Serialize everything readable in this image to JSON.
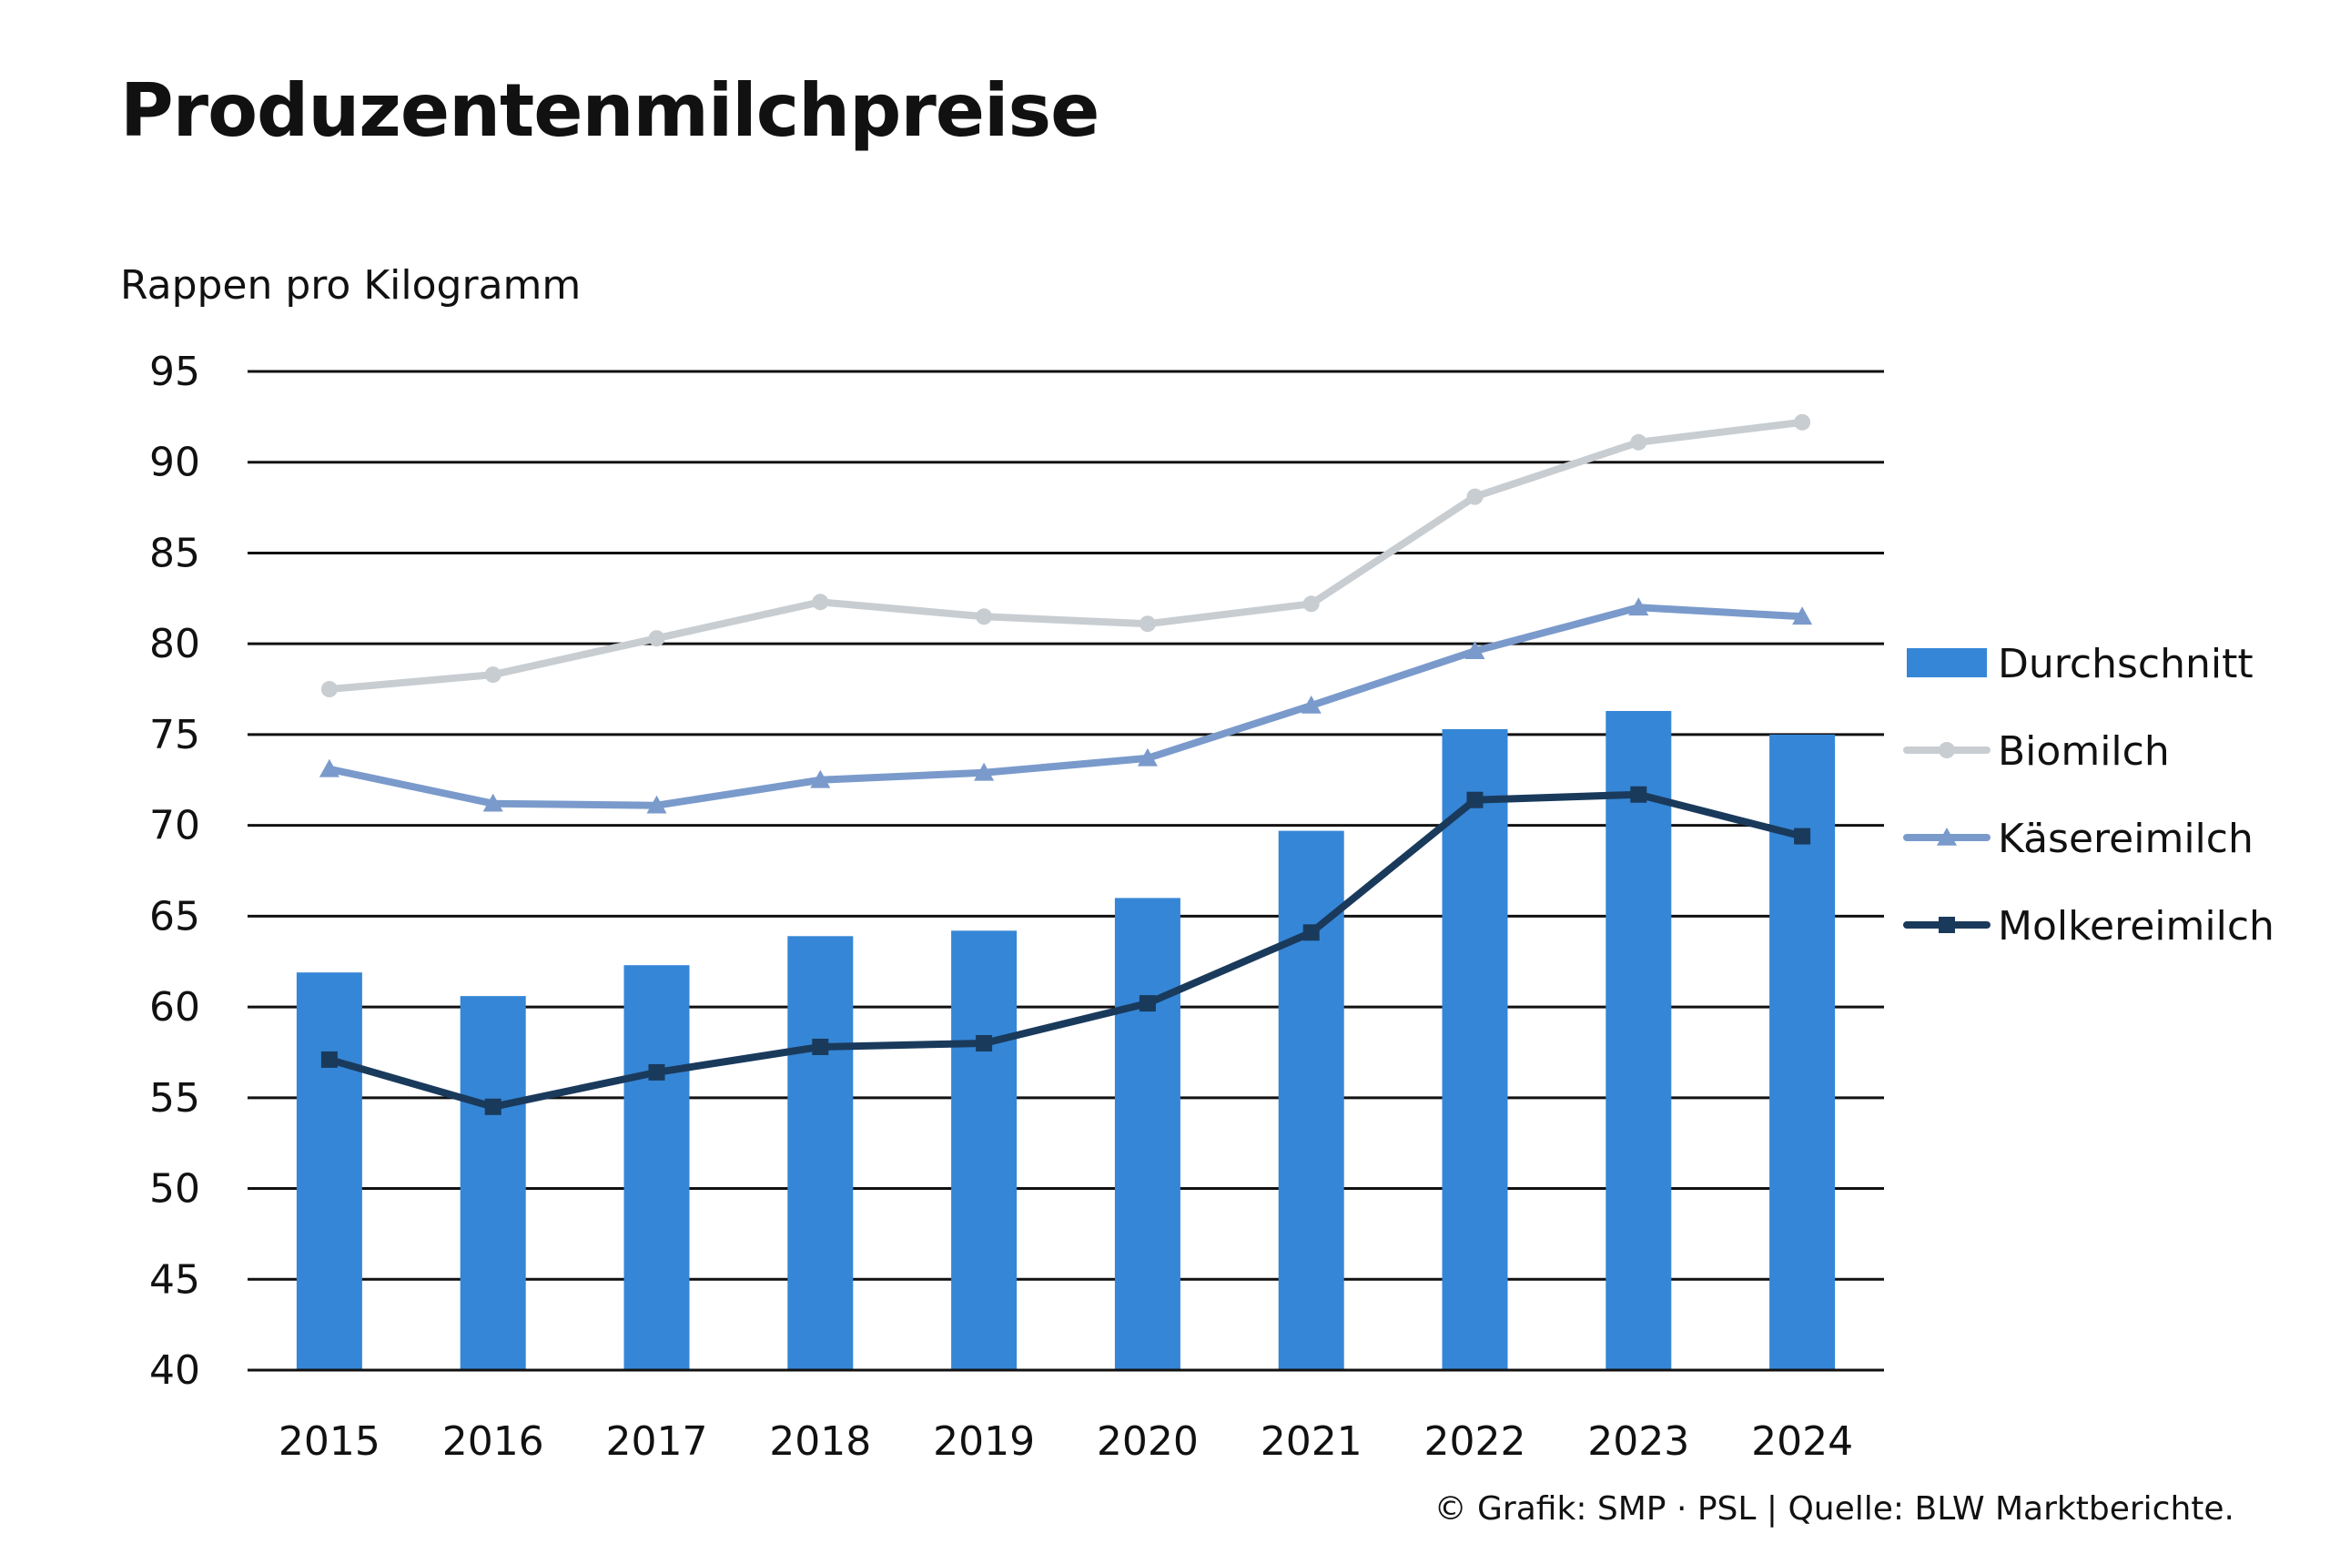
{
  "title": "Produzentenmilchpreise",
  "y_unit_label": "Rappen pro Kilogramm",
  "source": "© Grafik: SMP · PSL | Quelle: BLW Marktberichte.",
  "colors": {
    "durchschnitt": "#3586d6",
    "biomilch": "#c8cdd2",
    "kaesereimilch": "#7a9acb",
    "molkereimilch": "#1a3a5c",
    "grid": "#111111",
    "text": "#111111"
  },
  "chart_data": {
    "type": "bar",
    "categories": [
      "2015",
      "2016",
      "2017",
      "2018",
      "2019",
      "2020",
      "2021",
      "2022",
      "2023",
      "2024"
    ],
    "ylim": [
      40,
      95
    ],
    "yticks": [
      95,
      90,
      85,
      80,
      75,
      70,
      65,
      60,
      55,
      50,
      45,
      40
    ],
    "ylabel": "Rappen pro Kilogramm",
    "grid": true,
    "legend_position": "right",
    "series": [
      {
        "name": "Durchschnitt",
        "type": "bar",
        "marker": "rect",
        "values": [
          61.9,
          60.6,
          62.3,
          63.9,
          64.2,
          66.0,
          69.7,
          75.3,
          76.3,
          75.0
        ]
      },
      {
        "name": "Biomilch",
        "type": "line",
        "marker": "circle",
        "values": [
          77.5,
          78.3,
          80.3,
          82.3,
          81.5,
          81.1,
          82.2,
          88.1,
          91.1,
          92.2
        ]
      },
      {
        "name": "Käsereimilch",
        "type": "line",
        "marker": "triangle",
        "values": [
          73.1,
          71.2,
          71.1,
          72.5,
          72.9,
          73.7,
          76.6,
          79.6,
          82.0,
          81.5
        ]
      },
      {
        "name": "Molkereimilch",
        "type": "line",
        "marker": "square",
        "values": [
          57.1,
          54.5,
          56.4,
          57.8,
          58.0,
          60.2,
          64.1,
          71.4,
          71.7,
          69.4
        ]
      }
    ]
  }
}
